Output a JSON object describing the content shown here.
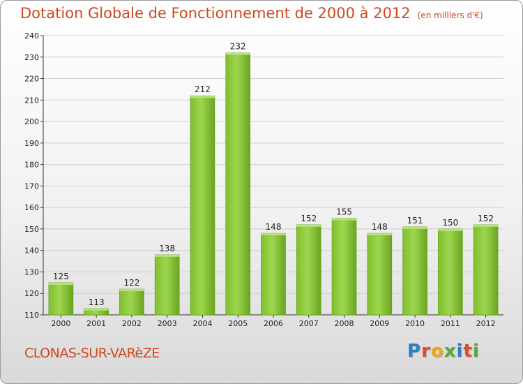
{
  "header": {
    "title": "Dotation Globale de Fonctionnement de 2000 à 2012",
    "subtitle": "(en milliers d'€)"
  },
  "footer": {
    "city": "CLONAS-SUR-VARèZE",
    "logo_text": "Proxiti"
  },
  "chart_data": {
    "type": "bar",
    "title": "Dotation Globale de Fonctionnement de 2000 à 2012",
    "subtitle": "(en milliers d'€)",
    "categories": [
      "2000",
      "2001",
      "2002",
      "2003",
      "2004",
      "2005",
      "2006",
      "2007",
      "2008",
      "2009",
      "2010",
      "2011",
      "2012"
    ],
    "values": [
      125,
      113,
      122,
      138,
      212,
      232,
      148,
      152,
      155,
      148,
      151,
      150,
      152
    ],
    "ylim": [
      110,
      240
    ],
    "yticks": [
      110,
      120,
      130,
      140,
      150,
      160,
      170,
      180,
      190,
      200,
      210,
      220,
      230,
      240
    ],
    "grid": true,
    "bar_color": "#8cc63f"
  }
}
